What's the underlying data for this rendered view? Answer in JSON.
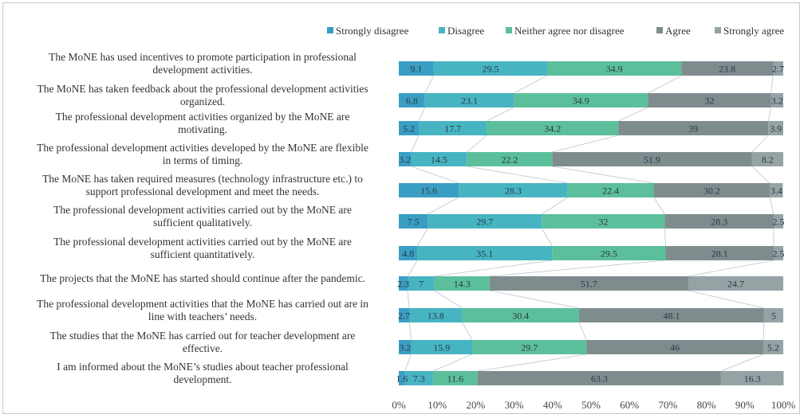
{
  "chart_data": {
    "type": "bar",
    "orientation": "horizontal",
    "stacked": "100%",
    "categories": [
      [
        "The MoNE has used incentives to promote participation in professional",
        "development activities."
      ],
      [
        "The MoNE has taken feedback about the professional development activities",
        "organized."
      ],
      [
        "The professional development activities organized by the MoNE are",
        "motivating."
      ],
      [
        "The professional development activities developed by the MoNE are flexible",
        "in terms of timing."
      ],
      [
        "The MoNE has taken required measures (technology infrastructure etc.) to",
        "support professional development and meet the needs."
      ],
      [
        "The professional development activities carried out by the MoNE are",
        "sufficient qualitatively."
      ],
      [
        "The professional development activities carried out by the MoNE are",
        "sufficient quantitatively."
      ],
      [
        "The projects that the MoNE has started should continue after the pandemic."
      ],
      [
        "The professional development activities that the MoNE has carried out are in",
        "line with teachers’ needs."
      ],
      [
        "The studies that the MoNE has carried out for teacher development are",
        "effective."
      ],
      [
        "I am informed about the MoNE’s studies about teacher professional",
        "development."
      ]
    ],
    "series": [
      {
        "name": "Strongly disagree",
        "color": "#3a9ec4",
        "values": [
          9.1,
          6.8,
          5.2,
          3.2,
          15.6,
          7.5,
          4.8,
          2.3,
          2.7,
          3.2,
          1.6
        ]
      },
      {
        "name": "Disagree",
        "color": "#47b4c2",
        "values": [
          29.5,
          23.1,
          17.7,
          14.5,
          28.3,
          29.7,
          35.1,
          7,
          13.8,
          15.9,
          7.3
        ]
      },
      {
        "name": "Neither agree nor disagree",
        "color": "#5cbf9c",
        "values": [
          34.9,
          34.9,
          34.2,
          22.2,
          22.4,
          32,
          29.5,
          14.3,
          30.4,
          29.7,
          11.6
        ]
      },
      {
        "name": "Agree",
        "color": "#7f8c8e",
        "values": [
          23.8,
          32,
          39,
          51.9,
          30.2,
          28.3,
          28.1,
          51.7,
          48.1,
          46,
          63.3
        ]
      },
      {
        "name": "Strongly agree",
        "color": "#95a3a5",
        "values": [
          2.7,
          3.2,
          3.9,
          8.2,
          3.4,
          2.5,
          2.5,
          24.7,
          5,
          5.2,
          16.3
        ]
      }
    ],
    "data_labels": [
      [
        "9.1",
        "29.5",
        "34.9",
        "23.8",
        "2.7"
      ],
      [
        "6.8",
        "23.1",
        "34.9",
        "32",
        "3.2"
      ],
      [
        "5.2",
        "17.7",
        "34.2",
        "39",
        "3.9"
      ],
      [
        "3.2",
        "14.5",
        "22.2",
        "51.9",
        "8.2"
      ],
      [
        "15.6",
        "28.3",
        "22.4",
        "30.2",
        "3.4"
      ],
      [
        "7.5",
        "29.7",
        "32",
        "28.3",
        "2.5"
      ],
      [
        "4.8",
        "35.1",
        "29.5",
        "28.1",
        "2.5"
      ],
      [
        "2.3",
        "7",
        "14.3",
        "51.7",
        "24.7"
      ],
      [
        "2.7",
        "13.8",
        "30.4",
        "48.1",
        "5"
      ],
      [
        "3.2",
        "15.9",
        "29.7",
        "46",
        "5.2"
      ],
      [
        "1.6",
        "7.3",
        "11.6",
        "63.3",
        "16.3"
      ]
    ],
    "x_ticks": [
      "0%",
      "10%",
      "20%",
      "30%",
      "40%",
      "50%",
      "60%",
      "70%",
      "80%",
      "90%",
      "100%"
    ],
    "xlim": [
      0,
      100
    ],
    "series_lines": true,
    "grid": false,
    "legend_position": "top"
  }
}
